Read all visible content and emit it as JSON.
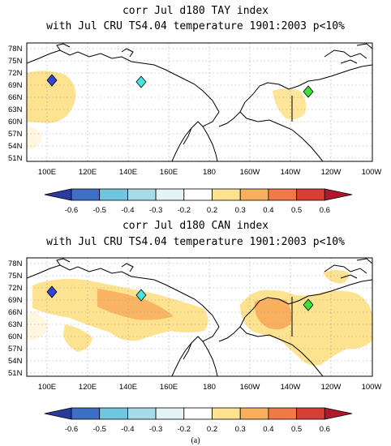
{
  "panels": [
    {
      "title_line1": "corr Jul d180 TAY index",
      "title_line2": "with Jul CRU TS4.04 temperature 1901:2003 p<10%",
      "lat_ticks": [
        "78N",
        "75N",
        "72N",
        "69N",
        "66N",
        "63N",
        "60N",
        "57N",
        "54N",
        "51N"
      ],
      "lon_ticks": [
        "100E",
        "120E",
        "140E",
        "160E",
        "180",
        "160W",
        "140W",
        "120W",
        "100W"
      ],
      "colorbar_ticks": [
        "-0.6",
        "-0.5",
        "-0.4",
        "-0.3",
        "-0.2",
        "0.2",
        "0.3",
        "0.4",
        "0.5",
        "0.6"
      ]
    },
    {
      "title_line1": "corr Jul d180 CAN index",
      "title_line2": "with Jul CRU TS4.04 temperature 1901:2003 p<10%",
      "lat_ticks": [
        "78N",
        "75N",
        "72N",
        "69N",
        "66N",
        "63N",
        "60N",
        "57N",
        "54N",
        "51N"
      ],
      "lon_ticks": [
        "100E",
        "120E",
        "140E",
        "160E",
        "180",
        "160W",
        "140W",
        "120W",
        "100W"
      ],
      "colorbar_ticks": [
        "-0.6",
        "-0.5",
        "-0.4",
        "-0.3",
        "-0.2",
        "0.2",
        "0.3",
        "0.4",
        "0.5",
        "0.6"
      ]
    }
  ],
  "caption": "(a)",
  "map_extent": {
    "lon_min": 90,
    "lon_max": 260,
    "lat_min": 49.5,
    "lat_max": 80
  },
  "colorbar_colors": [
    "#2b3a9e",
    "#3d6fc4",
    "#6fc6de",
    "#a8dbe8",
    "#e3f3f6",
    "#ffffff",
    "#fde28f",
    "#f8b05f",
    "#ef7a47",
    "#d93e36",
    "#b2182b"
  ],
  "site_markers": [
    {
      "name": "blue-site",
      "lon": 103,
      "lat": 70,
      "color": "#3344d6"
    },
    {
      "name": "cyan-site",
      "lon": 145,
      "lat": 69.5,
      "color": "#49e3e0"
    },
    {
      "name": "green-site",
      "lon": 226,
      "lat": 67.5,
      "color": "#3ee03e"
    }
  ],
  "colors": {
    "positive_light": "#fde28f",
    "positive_mid": "#f8b05f",
    "coastline": "#000000",
    "gridline": "#9a9a9a"
  }
}
